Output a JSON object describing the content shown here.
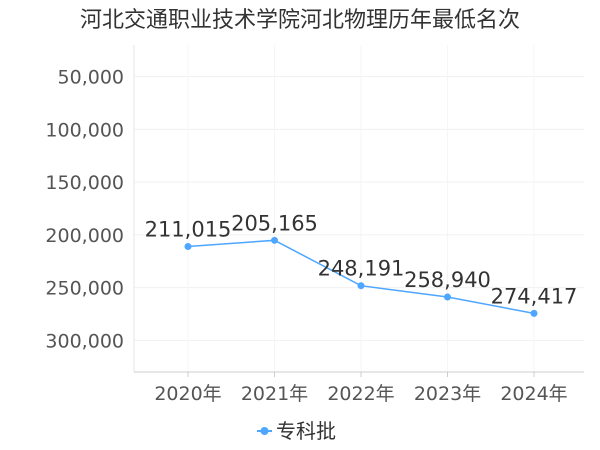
{
  "chart_data": {
    "type": "line",
    "title": "河北交通职业技术学院河北物理历年最低名次",
    "xlabel": "",
    "ylabel": "",
    "categories": [
      "2020年",
      "2021年",
      "2022年",
      "2023年",
      "2024年"
    ],
    "series": [
      {
        "name": "专科批",
        "values": [
          211015,
          205165,
          248191,
          258940,
          274417
        ],
        "color": "#4da6ff"
      }
    ],
    "data_labels": [
      "211,015",
      "205,165",
      "248,191",
      "258,940",
      "274,417"
    ],
    "y_ticks": [
      50000,
      100000,
      150000,
      200000,
      250000,
      300000
    ],
    "y_tick_labels": [
      "50,000",
      "100,000",
      "150,000",
      "200,000",
      "250,000",
      "300,000"
    ],
    "y_reversed": true,
    "ylim": [
      20000,
      330000
    ],
    "grid": true,
    "legend_position": "bottom"
  }
}
